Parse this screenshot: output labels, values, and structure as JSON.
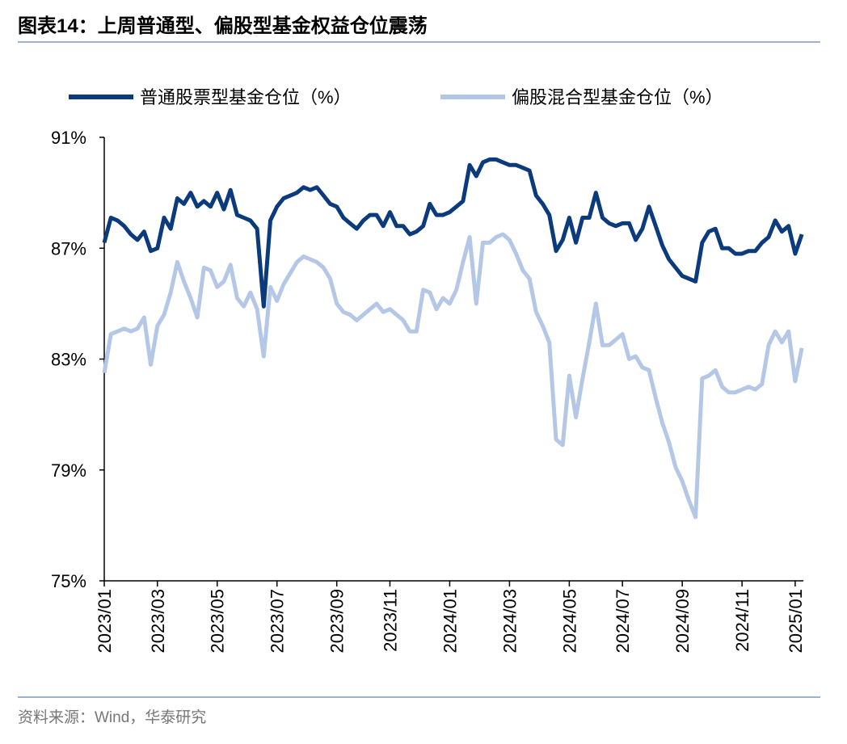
{
  "title": "图表14：上周普通型、偏股型基金权益仓位震荡",
  "source": "资料来源：Wind，华泰研究",
  "chart_data": {
    "type": "line",
    "categories": [
      "2023/01",
      null,
      null,
      null,
      null,
      null,
      null,
      null,
      "2023/03",
      null,
      null,
      null,
      null,
      null,
      null,
      null,
      null,
      "2023/05",
      null,
      null,
      null,
      null,
      null,
      null,
      null,
      null,
      "2023/07",
      null,
      null,
      null,
      null,
      null,
      null,
      null,
      null,
      "2023/09",
      null,
      null,
      null,
      null,
      null,
      null,
      null,
      "2023/11",
      null,
      null,
      null,
      null,
      null,
      null,
      null,
      null,
      "2024/01",
      null,
      null,
      null,
      null,
      null,
      null,
      null,
      null,
      "2024/03",
      null,
      null,
      null,
      null,
      null,
      null,
      null,
      null,
      "2024/05",
      null,
      null,
      null,
      null,
      null,
      null,
      null,
      "2024/07",
      null,
      null,
      null,
      null,
      null,
      null,
      null,
      null,
      "2024/09",
      null,
      null,
      null,
      null,
      null,
      null,
      null,
      null,
      "2024/11",
      null,
      null,
      null,
      null,
      null,
      null,
      null,
      "2025/01",
      null
    ],
    "series": [
      {
        "name": "普通股票型基金仓位（%）",
        "color": "#0b3b7c",
        "values": [
          87.2,
          88.1,
          88.0,
          87.8,
          87.5,
          87.3,
          87.6,
          86.9,
          87.0,
          88.1,
          87.7,
          88.8,
          88.6,
          89.0,
          88.5,
          88.7,
          88.5,
          89.0,
          88.4,
          89.1,
          88.2,
          88.1,
          88.0,
          87.7,
          84.9,
          88.0,
          88.5,
          88.8,
          88.9,
          89.0,
          89.2,
          89.1,
          89.2,
          88.9,
          88.6,
          88.5,
          88.1,
          87.9,
          87.7,
          88.0,
          88.2,
          88.2,
          87.8,
          88.3,
          87.8,
          87.8,
          87.5,
          87.6,
          87.8,
          88.6,
          88.2,
          88.2,
          88.3,
          88.5,
          88.7,
          90.0,
          89.6,
          90.1,
          90.2,
          90.2,
          90.1,
          90.0,
          90.0,
          89.9,
          89.8,
          88.9,
          88.6,
          88.2,
          86.9,
          87.3,
          88.1,
          87.2,
          88.1,
          88.1,
          89.0,
          88.1,
          87.9,
          87.8,
          87.9,
          87.9,
          87.3,
          87.7,
          88.5,
          87.8,
          87.1,
          86.6,
          86.3,
          86.0,
          85.9,
          85.8,
          87.2,
          87.6,
          87.7,
          87.0,
          87.0,
          86.8,
          86.8,
          86.9,
          86.9,
          87.2,
          87.4,
          88.0,
          87.6,
          87.8,
          86.8,
          87.5
        ]
      },
      {
        "name": "偏股混合型基金仓位（%）",
        "color": "#b4c7e7",
        "values": [
          82.5,
          83.9,
          84.0,
          84.1,
          84.0,
          84.1,
          84.5,
          82.8,
          84.2,
          84.6,
          85.4,
          86.5,
          85.8,
          85.2,
          84.5,
          86.3,
          86.2,
          85.6,
          85.8,
          86.4,
          85.2,
          84.9,
          85.4,
          84.8,
          83.1,
          85.6,
          85.1,
          85.7,
          86.1,
          86.5,
          86.7,
          86.6,
          86.5,
          86.3,
          85.9,
          85.0,
          84.7,
          84.6,
          84.4,
          84.6,
          84.8,
          85.0,
          84.7,
          84.8,
          84.6,
          84.4,
          84.0,
          84.0,
          85.5,
          85.4,
          84.8,
          85.2,
          85.0,
          85.5,
          86.5,
          87.4,
          85.0,
          87.2,
          87.2,
          87.4,
          87.5,
          87.3,
          86.8,
          86.2,
          85.9,
          84.7,
          84.2,
          83.6,
          80.1,
          79.9,
          82.4,
          80.9,
          82.3,
          83.6,
          85.0,
          83.5,
          83.5,
          83.7,
          83.9,
          83.0,
          83.1,
          82.7,
          82.6,
          81.6,
          80.7,
          80.0,
          79.1,
          78.6,
          77.9,
          77.3,
          82.3,
          82.4,
          82.6,
          82.0,
          81.8,
          81.8,
          81.9,
          82.0,
          81.9,
          82.1,
          83.5,
          84.0,
          83.6,
          84.0,
          82.2,
          83.4
        ]
      }
    ],
    "ylim": [
      75,
      91
    ],
    "yticks": [
      {
        "value": 75,
        "label": "75%"
      },
      {
        "value": 79,
        "label": "79%"
      },
      {
        "value": 83,
        "label": "83%"
      },
      {
        "value": 87,
        "label": "87%"
      },
      {
        "value": 91,
        "label": "91%"
      }
    ],
    "legend": "top"
  }
}
